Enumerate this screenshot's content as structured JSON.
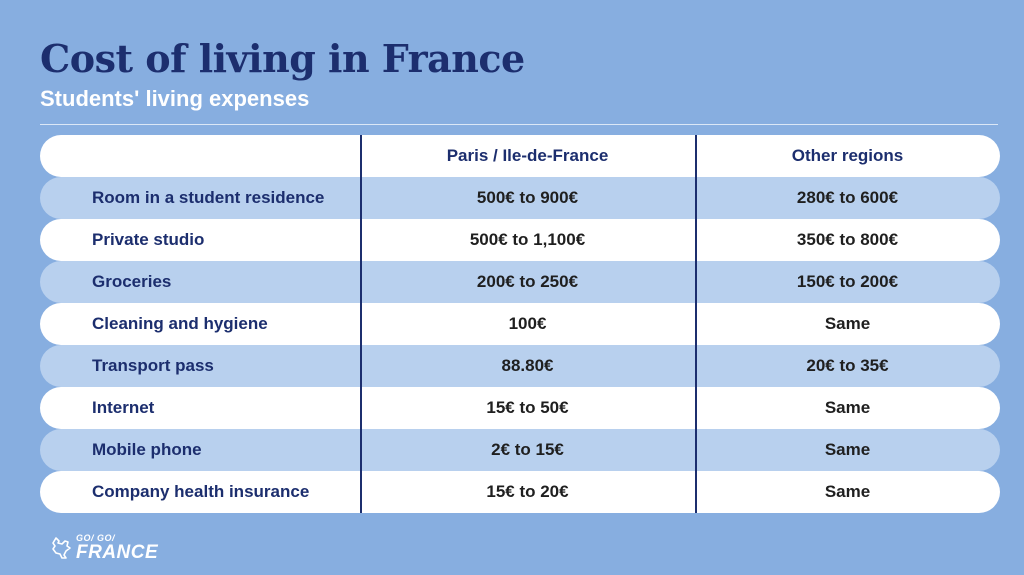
{
  "title": "Cost of living in France",
  "subtitle": "Students' living expenses",
  "table": {
    "headers": [
      "",
      "Paris / Ile-de-France",
      "Other regions"
    ],
    "rows": [
      [
        "Room in a student residence",
        "500€ to 900€",
        "280€ to 600€"
      ],
      [
        "Private studio",
        "500€ to 1,100€",
        "350€ to 800€"
      ],
      [
        "Groceries",
        "200€ to 250€",
        "150€ to 200€"
      ],
      [
        "Cleaning and hygiene",
        "100€",
        "Same"
      ],
      [
        "Transport pass",
        "88.80€",
        "20€ to 35€"
      ],
      [
        "Internet",
        "15€ to 50€",
        "Same"
      ],
      [
        "Mobile phone",
        "2€ to 15€",
        "Same"
      ],
      [
        "Company health insurance",
        "15€ to 20€",
        "Same"
      ]
    ]
  },
  "logo": {
    "top": "GO/ GO/",
    "bottom": "FRANCE",
    "icon": "rooster-icon"
  },
  "colors": {
    "background": "#87aee0",
    "title": "#1c2e6e",
    "row_light": "#ffffff",
    "row_dark": "#b8d0ee"
  }
}
